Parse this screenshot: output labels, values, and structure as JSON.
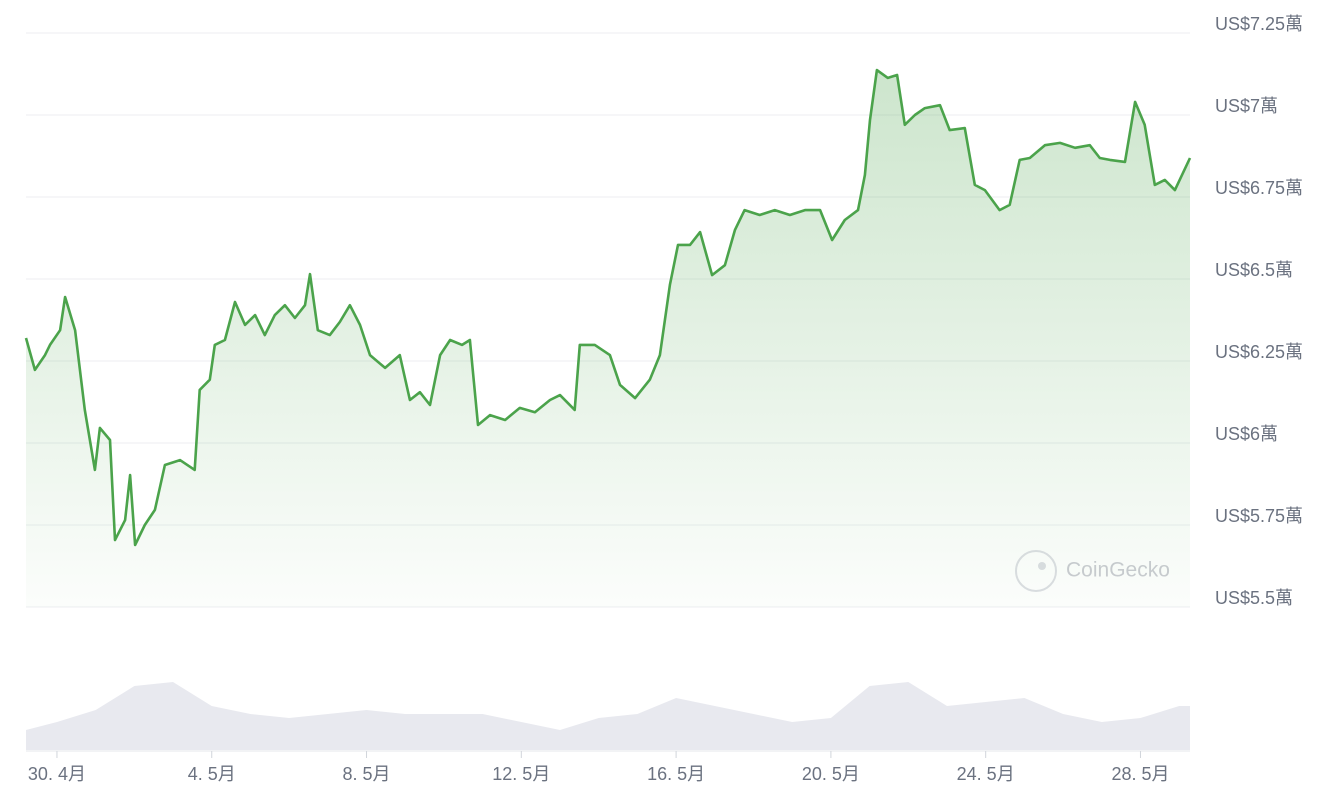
{
  "chart_data": {
    "type": "line",
    "watermark": "CoinGecko",
    "xlim": [
      -0.8,
      29.28
    ],
    "xticks": [
      {
        "value": 0,
        "label": "30. 4月"
      },
      {
        "value": 4,
        "label": "4. 5月"
      },
      {
        "value": 8,
        "label": "8. 5月"
      },
      {
        "value": 12,
        "label": "12. 5月"
      },
      {
        "value": 16,
        "label": "16. 5月"
      },
      {
        "value": 20,
        "label": "20. 5月"
      },
      {
        "value": 24,
        "label": "24. 5月"
      },
      {
        "value": 28,
        "label": "28. 5月"
      }
    ],
    "ylim": [
      55000,
      72500
    ],
    "yticks": [
      {
        "value": 72500,
        "label": "US$7.25萬"
      },
      {
        "value": 70000,
        "label": "US$7萬"
      },
      {
        "value": 67500,
        "label": "US$6.75萬"
      },
      {
        "value": 65000,
        "label": "US$6.5萬"
      },
      {
        "value": 62500,
        "label": "US$6.25萬"
      },
      {
        "value": 60000,
        "label": "US$6萬"
      },
      {
        "value": 57500,
        "label": "US$5.75萬"
      },
      {
        "value": 55000,
        "label": "US$5.5萬"
      }
    ],
    "grid": true,
    "series": [
      {
        "color": "#4ba34b",
        "x": [
          -0.8,
          -0.57,
          -0.31,
          -0.18,
          0.08,
          0.21,
          0.47,
          0.72,
          0.98,
          1.11,
          1.37,
          1.5,
          1.76,
          1.89,
          2.02,
          2.27,
          2.53,
          2.79,
          3.18,
          3.56,
          3.69,
          3.95,
          4.08,
          4.34,
          4.6,
          4.86,
          5.12,
          5.37,
          5.63,
          5.89,
          6.15,
          6.41,
          6.54,
          6.74,
          7.05,
          7.31,
          7.57,
          7.83,
          8.09,
          8.48,
          8.86,
          9.12,
          9.38,
          9.64,
          9.9,
          10.16,
          10.47,
          10.67,
          10.88,
          11.19,
          11.58,
          11.96,
          12.35,
          12.74,
          13.0,
          13.38,
          13.51,
          13.9,
          14.29,
          14.55,
          14.94,
          15.32,
          15.58,
          15.84,
          16.05,
          16.36,
          16.62,
          16.93,
          17.26,
          17.52,
          17.77,
          18.16,
          18.55,
          18.94,
          19.33,
          19.72,
          20.03,
          20.36,
          20.7,
          20.88,
          21.01,
          21.19,
          21.47,
          21.71,
          21.91,
          22.17,
          22.43,
          22.82,
          23.07,
          23.46,
          23.72,
          23.98,
          24.36,
          24.62,
          24.88,
          25.14,
          25.53,
          25.92,
          26.31,
          26.69,
          26.95,
          27.21,
          27.6,
          27.86,
          28.11,
          28.37,
          28.63,
          28.89,
          29.28
        ],
        "values": [
          63200,
          62230,
          62680,
          62990,
          63440,
          64450,
          63440,
          61010,
          59180,
          60460,
          60090,
          57040,
          57650,
          59020,
          56890,
          57500,
          57960,
          59330,
          59480,
          59180,
          61620,
          61930,
          62990,
          63140,
          64300,
          63600,
          63900,
          63290,
          63900,
          64200,
          63810,
          64200,
          65150,
          63440,
          63290,
          63690,
          64200,
          63600,
          62680,
          62290,
          62680,
          61310,
          61550,
          61160,
          62680,
          63140,
          62990,
          63140,
          60550,
          60850,
          60700,
          61070,
          60940,
          61310,
          61460,
          61010,
          62990,
          62990,
          62680,
          61770,
          61370,
          61930,
          62680,
          64820,
          66040,
          66040,
          66430,
          65120,
          65420,
          66490,
          67100,
          66950,
          67100,
          66950,
          67100,
          67100,
          66190,
          66800,
          67100,
          68170,
          69850,
          71370,
          71130,
          71220,
          69700,
          70000,
          70210,
          70300,
          69540,
          69600,
          67870,
          67710,
          67100,
          67260,
          68630,
          68690,
          69080,
          69150,
          69000,
          69080,
          68690,
          68630,
          68570,
          70400,
          69700,
          67870,
          68020,
          67710,
          68690
        ]
      }
    ],
    "volume": {
      "color": "#e8e9ef",
      "lim": [
        0,
        100
      ],
      "x": [
        -0.8,
        0,
        1,
        2,
        3,
        4,
        5,
        6,
        7,
        8,
        9,
        10,
        11,
        12,
        13,
        14,
        15,
        16,
        17,
        18,
        19,
        20,
        21,
        22,
        23,
        24,
        25,
        26,
        27,
        28,
        29,
        29.28
      ],
      "values": [
        25,
        35,
        50,
        80,
        85,
        55,
        45,
        40,
        45,
        50,
        45,
        45,
        45,
        35,
        25,
        40,
        45,
        65,
        55,
        45,
        35,
        40,
        80,
        85,
        55,
        60,
        65,
        45,
        35,
        40,
        55,
        55
      ]
    }
  }
}
